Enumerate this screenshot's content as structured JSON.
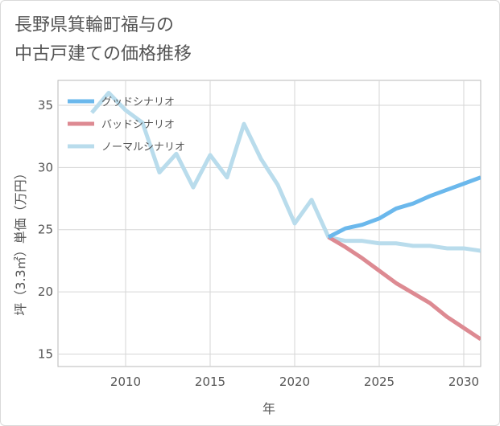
{
  "chart_data": {
    "type": "line",
    "title_lines": [
      "長野県箕輪町福与の",
      "中古戸建ての価格推移"
    ],
    "xlabel": "年",
    "ylabel": "坪（3.3㎡）単価（万円）",
    "xlim": [
      2006,
      2031
    ],
    "ylim": [
      14,
      37
    ],
    "xticks": [
      2010,
      2015,
      2020,
      2025,
      2030
    ],
    "yticks": [
      15,
      20,
      25,
      30,
      35
    ],
    "xtick_labels": [
      "2010",
      "2015",
      "2020",
      "2025",
      "2030"
    ],
    "ytick_labels": [
      "15",
      "20",
      "25",
      "30",
      "35"
    ],
    "grid": true,
    "legend_position": "top-left",
    "series": [
      {
        "name": "グッドシナリオ",
        "color": "#6bb8ec",
        "x": [
          2022,
          2023,
          2024,
          2025,
          2026,
          2027,
          2028,
          2029,
          2030,
          2031
        ],
        "y": [
          24.4,
          25.1,
          25.4,
          25.9,
          26.7,
          27.1,
          27.7,
          28.2,
          28.7,
          29.2
        ]
      },
      {
        "name": "バッドシナリオ",
        "color": "#dd8a92",
        "x": [
          2022,
          2023,
          2024,
          2025,
          2026,
          2027,
          2028,
          2029,
          2030,
          2031
        ],
        "y": [
          24.4,
          23.6,
          22.7,
          21.7,
          20.7,
          19.9,
          19.1,
          18.0,
          17.1,
          16.2
        ]
      },
      {
        "name": "ノーマルシナリオ",
        "color": "#b9dcec",
        "x": [
          2008,
          2009,
          2010,
          2011,
          2012,
          2013,
          2014,
          2015,
          2016,
          2017,
          2018,
          2019,
          2020,
          2021,
          2022,
          2023,
          2024,
          2025,
          2026,
          2027,
          2028,
          2029,
          2030,
          2031
        ],
        "y": [
          34.4,
          36.0,
          34.6,
          33.6,
          29.6,
          31.1,
          28.4,
          31.0,
          29.2,
          33.5,
          30.7,
          28.6,
          25.5,
          27.4,
          24.4,
          24.1,
          24.1,
          23.9,
          23.9,
          23.7,
          23.7,
          23.5,
          23.5,
          23.3
        ]
      }
    ]
  }
}
